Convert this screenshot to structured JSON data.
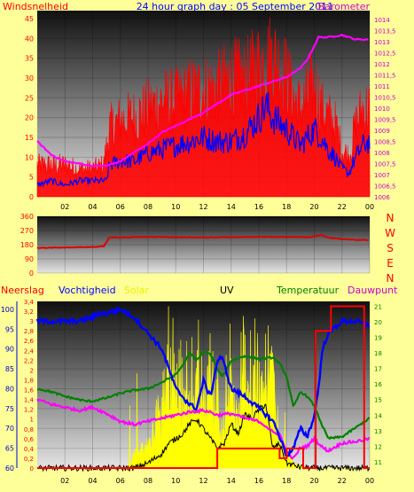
{
  "header": {
    "left": "Windsnelheid",
    "center": "24 hour graph day : 05 September 2011",
    "right": "Barometer"
  },
  "bottom_header": {
    "rain": "Neerslag",
    "humidity": "Vochtigheid",
    "solar": "Solar",
    "uv": "UV",
    "temp": "Temperatuur",
    "dew": "Dauwpunt"
  },
  "compass": [
    "N",
    "W",
    "S",
    "E",
    "N"
  ],
  "colors": {
    "background": "#ffff99",
    "wind_gust": "#ff0000",
    "wind_avg": "#0000ff",
    "barometer": "#ff00ff",
    "direction": "#dd0000",
    "humidity": "#0000ff",
    "solar": "#ffff00",
    "uv": "#000000",
    "temperature": "#008000",
    "dewpoint": "#ff00ff",
    "rain": "#ff0000",
    "barometer_axis": "#cc00cc",
    "wind_axis": "#ff0000",
    "rain_axis": "#0000cc",
    "uv_axis": "#ff0000",
    "temp_axis": "#008000",
    "dew_axis": "#cc00cc",
    "header_text": "#0000ff",
    "compass_text": "#ff0000"
  },
  "chart_data": [
    {
      "type": "line",
      "title": "24 hour graph day : 05 September 2011",
      "x_tick_labels": [
        "02",
        "04",
        "06",
        "08",
        "10",
        "12",
        "14",
        "16",
        "18",
        "20",
        "22",
        "00"
      ],
      "xlim": [
        0,
        24
      ],
      "left_axis": {
        "label": "Windsnelheid",
        "ylim": [
          0,
          47
        ],
        "ticks": [
          "0",
          "5",
          "10",
          "15",
          "20",
          "25",
          "30",
          "35",
          "40",
          "45"
        ]
      },
      "right_axis": {
        "label": "Barometer",
        "ylim": [
          1006,
          1014.4
        ],
        "ticks": [
          "1006",
          "1006,5",
          "1007",
          "1007,5",
          "1008",
          "1008,5",
          "1009",
          "1009,5",
          "1010",
          "1010,5",
          "1011",
          "1011,5",
          "1012",
          "1012,5",
          "1013",
          "1013,5",
          "1014"
        ]
      },
      "series": [
        {
          "name": "Windsnelheid",
          "axis": "left",
          "style": "noisy-filled",
          "x": [
            0,
            1,
            2,
            3,
            4,
            4.8,
            5.2,
            6,
            7,
            8,
            9,
            10,
            11,
            12,
            13,
            14,
            15,
            16,
            17,
            18,
            18.5,
            19,
            19.5,
            20,
            20.5,
            21,
            21.5,
            22,
            22.5,
            23,
            23.5,
            24
          ],
          "values": [
            8,
            8,
            8,
            7,
            7,
            8,
            17,
            19,
            20,
            22,
            24,
            24,
            26,
            27,
            27,
            30,
            29,
            33,
            35,
            30,
            25,
            22,
            25,
            28,
            22,
            20,
            18,
            12,
            10,
            18,
            22,
            22
          ]
        },
        {
          "name": "",
          "axis": "left",
          "style": "noisy-line",
          "x": [
            0,
            1,
            2,
            3,
            4,
            5,
            5.2,
            6,
            7,
            8,
            9,
            10,
            11,
            12,
            13,
            14,
            15,
            16,
            16.5,
            17,
            18,
            19,
            20,
            20.5,
            21,
            21.5,
            22,
            22.5,
            23,
            23.5,
            24
          ],
          "values": [
            3,
            4,
            3,
            4,
            4,
            4,
            8,
            9,
            9,
            11,
            12,
            13,
            14,
            15,
            14,
            14,
            16,
            20,
            23,
            20,
            17,
            13,
            17,
            15,
            12,
            10,
            7,
            6,
            10,
            13,
            14
          ]
        },
        {
          "name": "Barometer",
          "axis": "right",
          "style": "line",
          "x": [
            0,
            1,
            2,
            3,
            4,
            5,
            6,
            7,
            8,
            9,
            10,
            11,
            12,
            13,
            14,
            15,
            16,
            17,
            18,
            19,
            19.5,
            20,
            20.3,
            21,
            22,
            23,
            24
          ],
          "values": [
            1008.5,
            1007.9,
            1007.6,
            1007.5,
            1007.4,
            1007.4,
            1007.6,
            1008,
            1008.4,
            1008.9,
            1009.2,
            1009.5,
            1009.8,
            1010.2,
            1010.6,
            1010.8,
            1011,
            1011.2,
            1011.4,
            1011.8,
            1012.2,
            1012.8,
            1013.2,
            1013.2,
            1013.3,
            1013.1,
            1013.1
          ]
        }
      ]
    },
    {
      "type": "line",
      "xlim": [
        0,
        24
      ],
      "ylim": [
        0,
        360
      ],
      "y_ticks": [
        "0",
        "90",
        "180",
        "270",
        "360"
      ],
      "y_compass": [
        "N",
        "W",
        "S",
        "E",
        "N"
      ],
      "series": [
        {
          "name": "",
          "x": [
            0,
            2,
            4,
            4.8,
            5.2,
            8,
            12,
            16,
            19.7,
            20.5,
            21,
            22,
            23,
            24
          ],
          "values": [
            160,
            162,
            165,
            170,
            225,
            230,
            225,
            230,
            228,
            240,
            225,
            215,
            210,
            210
          ]
        }
      ]
    },
    {
      "type": "line",
      "xlim": [
        0,
        24
      ],
      "x_tick_labels": [
        "02",
        "04",
        "06",
        "08",
        "10",
        "12",
        "14",
        "16",
        "18",
        "20",
        "22",
        "00"
      ],
      "axes": {
        "rain": {
          "label": "Neerslag",
          "ylim": [
            0,
            3.4
          ],
          "ticks": [
            "0",
            "0,2",
            "0,4",
            "0,6",
            "0,8",
            "1",
            "1,2",
            "1,4",
            "1,6",
            "1,8",
            "2",
            "2,2",
            "2,4",
            "2,6",
            "2,8",
            "3",
            "3,2",
            "3,4"
          ]
        },
        "humidity": {
          "label": "Vochtigheid",
          "ylim": [
            60,
            102
          ],
          "ticks": [
            "60",
            "65",
            "70",
            "75",
            "80",
            "85",
            "90",
            "95",
            "100"
          ]
        },
        "uv": {
          "label": "UV",
          "ylim": [
            0,
            3.4
          ]
        },
        "temperature": {
          "label": "Temperatuur",
          "ylim": [
            10.6,
            21.3
          ],
          "ticks": [
            "11",
            "12",
            "13",
            "14",
            "15",
            "16",
            "17",
            "18",
            "19",
            "20",
            "21"
          ]
        },
        "dewpoint": {
          "label": "Dauwpunt",
          "ylim": [
            10.6,
            21.3
          ]
        }
      },
      "series": [
        {
          "name": "Vochtigheid",
          "axis": "humidity",
          "x": [
            0,
            2,
            3,
            4,
            4.5,
            5,
            6,
            7,
            8,
            9,
            10,
            10.5,
            11,
            11.5,
            12,
            12.5,
            13,
            13.3,
            13.6,
            14,
            15,
            16,
            17,
            17.5,
            18,
            18.5,
            19,
            19.5,
            20,
            20.3,
            20.6,
            21,
            22,
            23,
            24
          ],
          "values": [
            97,
            97,
            97,
            98,
            99,
            99,
            100,
            98,
            94,
            90,
            80,
            78,
            76,
            75,
            82,
            78,
            87,
            88,
            85,
            80,
            78,
            75,
            72,
            68,
            63,
            65,
            70,
            68,
            73,
            80,
            90,
            94,
            97,
            97,
            96
          ]
        },
        {
          "name": "Solar",
          "axis": "rain",
          "style": "spiky-filled",
          "x": [
            0,
            6.5,
            7,
            7.5,
            8,
            8.5,
            9,
            9.5,
            10,
            10.5,
            11,
            11.5,
            12,
            12.5,
            13,
            13.5,
            14,
            14.5,
            15,
            15.5,
            16,
            16.5,
            17,
            17.5,
            18,
            18.5,
            19,
            19.5,
            20,
            24
          ],
          "values": [
            0,
            0,
            0.3,
            0.4,
            0.5,
            0.8,
            1.2,
            2.2,
            1,
            1.5,
            1.2,
            1.6,
            1.2,
            2,
            1.4,
            0.8,
            1.8,
            0.9,
            2.2,
            1.5,
            1.8,
            1.6,
            2.3,
            0.6,
            0.3,
            0.1,
            0.05,
            0,
            0,
            0
          ]
        },
        {
          "name": "UV",
          "axis": "uv",
          "style": "noisy-line",
          "x": [
            0,
            6.5,
            7,
            7.5,
            8,
            9,
            9.5,
            10,
            10.5,
            11,
            11.5,
            12,
            12.5,
            13,
            13.5,
            14,
            14.5,
            15,
            15.5,
            16,
            16.5,
            17,
            17.5,
            18,
            19,
            20,
            24
          ],
          "values": [
            0,
            0,
            0,
            0.05,
            0.1,
            0.3,
            0.5,
            0.6,
            0.7,
            0.9,
            1,
            0.8,
            0.6,
            0.4,
            0.5,
            0.9,
            0.7,
            1.1,
            1,
            1.2,
            1.3,
            0.4,
            0.5,
            0.1,
            0.02,
            0,
            0
          ]
        },
        {
          "name": "Temperatuur",
          "axis": "temperature",
          "x": [
            0,
            1,
            2,
            3,
            3.5,
            4,
            5,
            6,
            7,
            8,
            9,
            10,
            10.5,
            11,
            11.5,
            12,
            12.5,
            13,
            13.3,
            13.6,
            14,
            15,
            16,
            17,
            17.5,
            18,
            18.5,
            19,
            19.5,
            20,
            20.5,
            21,
            22,
            23,
            24
          ],
          "values": [
            15.7,
            15.5,
            15.2,
            15,
            14.9,
            14.9,
            15.1,
            15.4,
            15.6,
            15.7,
            16.1,
            16.6,
            17.2,
            18,
            17.5,
            18.1,
            17.9,
            17,
            16.5,
            16.8,
            17.5,
            17.8,
            17.6,
            17.7,
            17.3,
            16.5,
            14.5,
            15.5,
            15.2,
            14.6,
            13.5,
            12.5,
            12.6,
            13.2,
            13.8
          ]
        },
        {
          "name": "Dauwpunt",
          "axis": "dewpoint",
          "x": [
            0,
            1,
            2,
            3,
            3.5,
            4,
            4.5,
            5,
            6,
            7,
            8,
            9,
            10,
            11,
            12,
            12.5,
            13,
            14,
            15,
            16,
            16.5,
            17,
            17.5,
            18,
            18.5,
            19,
            19.5,
            20,
            20.5,
            21,
            22,
            23,
            24
          ],
          "values": [
            15,
            14.7,
            14.5,
            14.3,
            14.4,
            14.5,
            14.3,
            14.1,
            13.6,
            13.4,
            13.6,
            13.8,
            14,
            14.2,
            14.3,
            14.2,
            14,
            14.1,
            13.8,
            13.6,
            13.3,
            12.9,
            12.8,
            11.6,
            11.2,
            11.9,
            12,
            12.5,
            12,
            11.7,
            12.2,
            12.3,
            12.5
          ]
        },
        {
          "name": "Neerslag",
          "axis": "rain",
          "style": "step",
          "x": [
            0,
            13,
            13,
            17.5,
            17.5,
            18,
            18,
            19.2,
            19.2,
            20.1,
            20.1,
            21.2,
            21.2,
            23.6,
            23.6,
            24
          ],
          "values": [
            0,
            0,
            0.4,
            0.4,
            0.2,
            0.2,
            0.4,
            0.4,
            0,
            0,
            2.8,
            2.8,
            3.3,
            3.3,
            0,
            0
          ]
        }
      ]
    }
  ]
}
